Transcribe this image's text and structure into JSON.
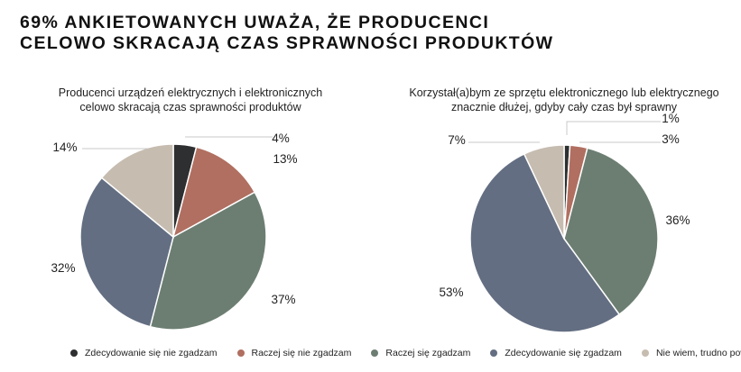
{
  "headline": {
    "line1": "69% ANKIETOWANYCH UWAŻA, ŻE PRODUCENCI",
    "line2": "CELOWO SKRACAJĄ CZAS SPRAWNOŚCI PRODUKTÓW"
  },
  "colors": {
    "Zdecydowanie się nie zgadzam": "#2d2f30",
    "Raczej się nie zgadzam": "#b06f60",
    "Raczej się zgadzam": "#6c7e72",
    "Zdecydowanie się zgadzam": "#636e82",
    "Nie wiem, trudno powiedzieć": "#c6bcb0"
  },
  "chart_data": [
    {
      "type": "pie",
      "title_lines": [
        "Producenci urządzeń elektrycznych i elektronicznych",
        "celowo skracają czas sprawności produktów"
      ],
      "categories": [
        "Zdecydowanie się nie zgadzam",
        "Raczej się nie zgadzam",
        "Raczej się zgadzam",
        "Zdecydowanie się zgadzam",
        "Nie wiem, trudno powiedzieć"
      ],
      "values": [
        4,
        13,
        37,
        32,
        14
      ],
      "labels": [
        "4%",
        "13%",
        "37%",
        "32%",
        "14%"
      ],
      "legend": "bottom"
    },
    {
      "type": "pie",
      "title_lines": [
        "Korzystał(a)bym ze sprzętu elektronicznego lub elektrycznego",
        "znacznie dłużej, gdyby cały czas był sprawny"
      ],
      "categories": [
        "Zdecydowanie się nie zgadzam",
        "Raczej się nie zgadzam",
        "Raczej się zgadzam",
        "Zdecydowanie się zgadzam",
        "Nie wiem, trudno powiedzieć"
      ],
      "values": [
        1,
        3,
        36,
        53,
        7
      ],
      "labels": [
        "1%",
        "3%",
        "36%",
        "53%",
        "7%"
      ],
      "legend": "bottom"
    }
  ],
  "legend": {
    "items": [
      "Zdecydowanie się nie zgadzam",
      "Raczej się nie zgadzam",
      "Raczej się zgadzam",
      "Zdecydowanie się zgadzam",
      "Nie wiem, trudno powiedzieć"
    ]
  }
}
